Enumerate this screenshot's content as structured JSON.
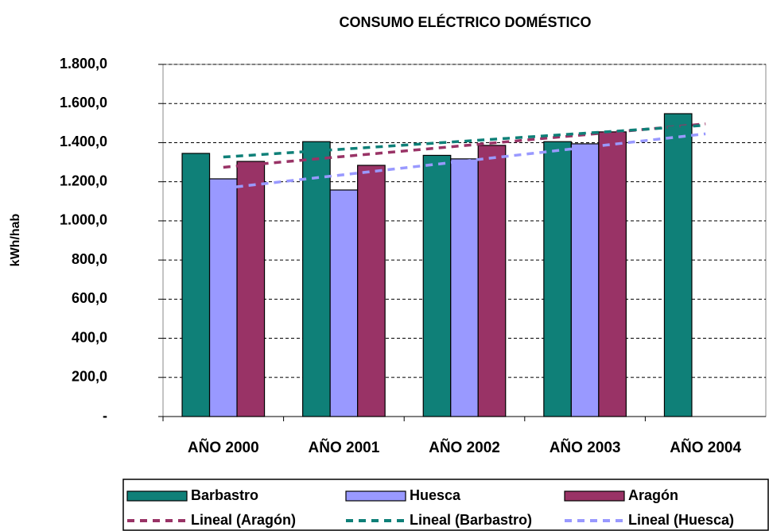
{
  "chart_data": {
    "type": "bar",
    "title": "CONSUMO ELÉCTRICO DOMÉSTICO",
    "y_label": "kWh/hab",
    "categories": [
      "AÑO 2000",
      "AÑO 2001",
      "AÑO 2002",
      "AÑO 2003",
      "AÑO 2004"
    ],
    "series": [
      {
        "name": "Barbastro",
        "color": "#0f8078",
        "values": [
          1345,
          1405,
          1335,
          1405,
          1548
        ]
      },
      {
        "name": "Huesca",
        "color": "#9999ff",
        "values": [
          1215,
          1158,
          1317,
          1394,
          null
        ]
      },
      {
        "name": "Aragón",
        "color": "#993366",
        "values": [
          1304,
          1284,
          1386,
          1455,
          null
        ]
      }
    ],
    "trendlines": [
      {
        "name": "Lineal (Aragón)",
        "series": 2,
        "color": "#993366"
      },
      {
        "name": "Lineal (Barbastro)",
        "series": 0,
        "color": "#0f8078"
      },
      {
        "name": "Lineal (Huesca)",
        "series": 1,
        "color": "#9999ff"
      }
    ],
    "ylim": [
      0,
      1800
    ],
    "yticks": [
      {
        "value": 0,
        "label": "-"
      },
      {
        "value": 200,
        "label": "200,0"
      },
      {
        "value": 400,
        "label": "400,0"
      },
      {
        "value": 600,
        "label": "600,0"
      },
      {
        "value": 800,
        "label": "800,0"
      },
      {
        "value": 1000,
        "label": "1.000,0"
      },
      {
        "value": 1200,
        "label": "1.200,0"
      },
      {
        "value": 1400,
        "label": "1.400,0"
      },
      {
        "value": 1600,
        "label": "1.600,0"
      },
      {
        "value": 1800,
        "label": "1.800,0"
      }
    ],
    "grid": true
  }
}
